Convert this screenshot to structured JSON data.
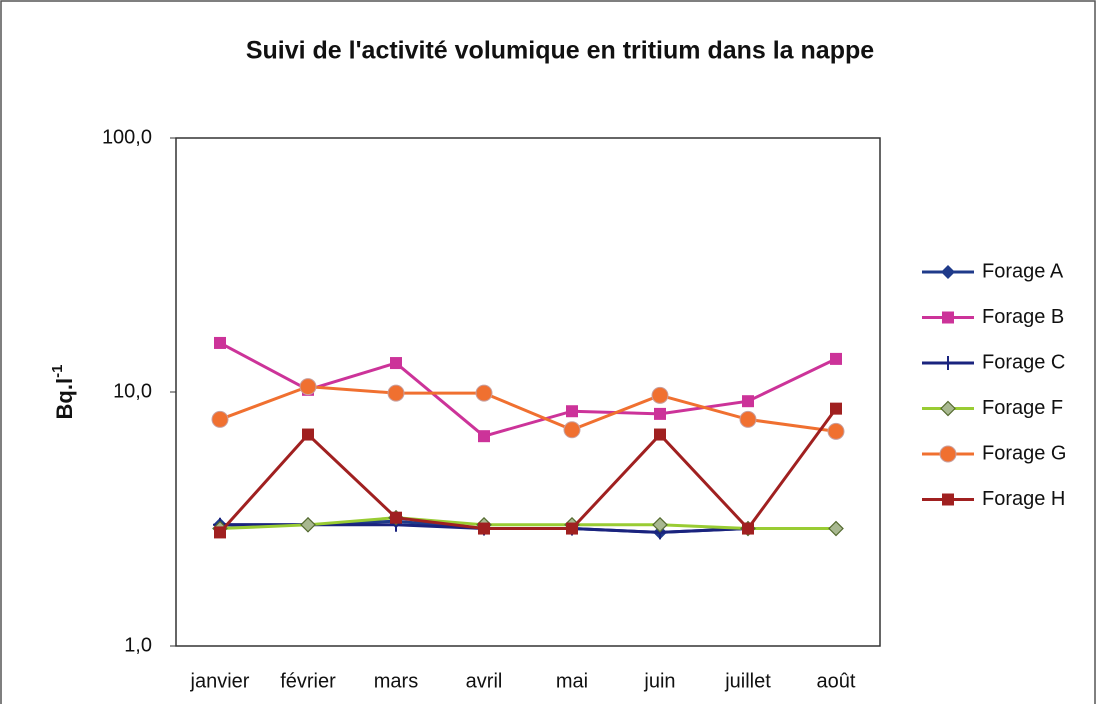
{
  "chart_data": {
    "type": "line",
    "title": "Suivi de l'activité volumique en tritium dans la nappe",
    "ylabel": "Bq.l",
    "ylabel_sup": "-1",
    "categories": [
      "janvier",
      "février",
      "mars",
      "avril",
      "mai",
      "juin",
      "juillet",
      "août"
    ],
    "log_scale": true,
    "ylim": [
      1,
      100
    ],
    "yticks": [
      {
        "value": 1,
        "label": "1,0"
      },
      {
        "value": 10,
        "label": "10,0"
      },
      {
        "value": 100,
        "label": "100,0"
      }
    ],
    "grid": false,
    "legend": "right",
    "series": [
      {
        "name": "Forage A",
        "color": "#1f3a8a",
        "marker": "diamond",
        "values": [
          3.0,
          3.0,
          3.1,
          2.9,
          2.9,
          2.8,
          2.9,
          2.9
        ]
      },
      {
        "name": "Forage B",
        "color": "#cc3399",
        "marker": "square",
        "values": [
          15.6,
          10.2,
          13.0,
          6.7,
          8.4,
          8.2,
          9.2,
          13.5
        ]
      },
      {
        "name": "Forage C",
        "color": "#1a237e",
        "marker": "plus",
        "values": [
          3.0,
          3.0,
          3.0,
          2.9,
          2.9,
          2.8,
          2.9,
          2.9
        ]
      },
      {
        "name": "Forage F",
        "color": "#99cc33",
        "marker": "diamond-open",
        "values": [
          2.9,
          3.0,
          3.2,
          3.0,
          3.0,
          3.0,
          2.9,
          2.9
        ]
      },
      {
        "name": "Forage G",
        "color": "#f07030",
        "marker": "circle",
        "values": [
          7.8,
          10.5,
          9.9,
          9.9,
          7.1,
          9.7,
          7.8,
          7.0
        ]
      },
      {
        "name": "Forage H",
        "color": "#a02020",
        "marker": "square",
        "values": [
          2.8,
          6.8,
          3.2,
          2.9,
          2.9,
          6.8,
          2.9,
          8.6
        ]
      }
    ]
  }
}
